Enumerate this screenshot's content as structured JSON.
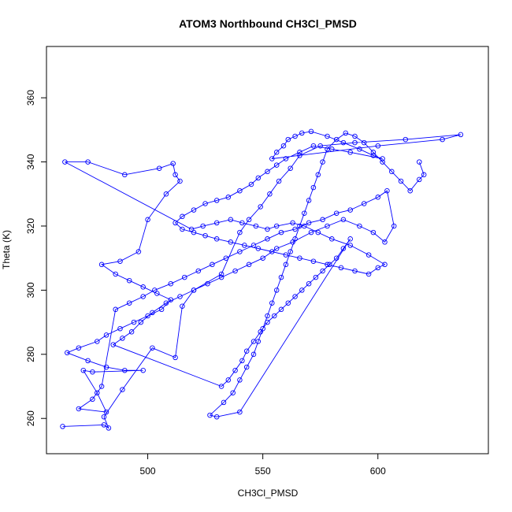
{
  "chart_data": {
    "type": "scatter",
    "title": "ATOM3 Northbound CH3Cl_PMSD",
    "xlabel": "CH3Cl_PMSD",
    "ylabel": "Theta (K)",
    "xlim": [
      456,
      648
    ],
    "ylim": [
      249,
      376
    ],
    "xticks": [
      500,
      550,
      600
    ],
    "yticks": [
      260,
      280,
      300,
      320,
      340,
      360
    ],
    "marker": "open-circle",
    "connected": true,
    "grid": false,
    "color": "#0000ff",
    "series": [
      {
        "points": [
          [
            463,
            257.5
          ],
          [
            481,
            258
          ],
          [
            483,
            257
          ],
          [
            481,
            260.5
          ],
          [
            489,
            269
          ],
          [
            502,
            282
          ],
          [
            512,
            279
          ],
          [
            515,
            295
          ],
          [
            520,
            300
          ],
          [
            532,
            305
          ],
          [
            540,
            318
          ],
          [
            544,
            322
          ],
          [
            549,
            326
          ],
          [
            553,
            330
          ],
          [
            557,
            334
          ],
          [
            562,
            338
          ],
          [
            566,
            342
          ],
          [
            575,
            345
          ],
          [
            590,
            346
          ],
          [
            612,
            347
          ],
          [
            636,
            348.5
          ],
          [
            628,
            347
          ],
          [
            600,
            345
          ],
          [
            554,
            341
          ],
          [
            556,
            343
          ],
          [
            559,
            345
          ],
          [
            561,
            347
          ],
          [
            564,
            348
          ],
          [
            567,
            349
          ],
          [
            571,
            349.5
          ],
          [
            578,
            348
          ],
          [
            585,
            346
          ],
          [
            592,
            344
          ],
          [
            598,
            342
          ],
          [
            602,
            341
          ],
          [
            588,
            343
          ],
          [
            580,
            344
          ],
          [
            572,
            345
          ],
          [
            566,
            343
          ],
          [
            560,
            341
          ],
          [
            556,
            339
          ],
          [
            552,
            337
          ],
          [
            548,
            335
          ],
          [
            545,
            333
          ],
          [
            540,
            331
          ],
          [
            535,
            329
          ],
          [
            530,
            328
          ],
          [
            525,
            327
          ],
          [
            520,
            325
          ],
          [
            515,
            323
          ],
          [
            512,
            321
          ],
          [
            515,
            319
          ],
          [
            520,
            318
          ],
          [
            525,
            317
          ],
          [
            530,
            316
          ],
          [
            536,
            315
          ],
          [
            542,
            314
          ],
          [
            548,
            313
          ],
          [
            554,
            312
          ],
          [
            560,
            311
          ],
          [
            566,
            310
          ],
          [
            572,
            309
          ],
          [
            578,
            308
          ],
          [
            584,
            307
          ],
          [
            590,
            306
          ],
          [
            596,
            305
          ],
          [
            600,
            307
          ],
          [
            603,
            308
          ],
          [
            596,
            311
          ],
          [
            588,
            314
          ],
          [
            580,
            316
          ],
          [
            574,
            318
          ],
          [
            568,
            320
          ],
          [
            563,
            321
          ],
          [
            556,
            320
          ],
          [
            552,
            319
          ],
          [
            547,
            320
          ],
          [
            541,
            321
          ],
          [
            536,
            322
          ],
          [
            530,
            321
          ],
          [
            524,
            320
          ],
          [
            519,
            319
          ],
          [
            464,
            340
          ],
          [
            474,
            340
          ],
          [
            490,
            336
          ],
          [
            505,
            338
          ],
          [
            511,
            339.5
          ],
          [
            512,
            336
          ],
          [
            514,
            334
          ],
          [
            508,
            330
          ],
          [
            500,
            322
          ],
          [
            496,
            312
          ],
          [
            488,
            309
          ],
          [
            480,
            308
          ],
          [
            486,
            305
          ],
          [
            492,
            303
          ],
          [
            498,
            301
          ],
          [
            504,
            299
          ],
          [
            510,
            297
          ],
          [
            506,
            294
          ],
          [
            500,
            292
          ],
          [
            494,
            290
          ],
          [
            488,
            288
          ],
          [
            482,
            286
          ],
          [
            478,
            284
          ],
          [
            470,
            282
          ],
          [
            465,
            280.5
          ],
          [
            474,
            278
          ],
          [
            482,
            276
          ],
          [
            490,
            275
          ],
          [
            498,
            275
          ],
          [
            476,
            274.5
          ],
          [
            472,
            275
          ],
          [
            478,
            268
          ],
          [
            482,
            262
          ],
          [
            470,
            263
          ],
          [
            476,
            266
          ],
          [
            480,
            270
          ],
          [
            486,
            294
          ],
          [
            492,
            296
          ],
          [
            498,
            298
          ],
          [
            503,
            300
          ],
          [
            510,
            302
          ],
          [
            516,
            304
          ],
          [
            522,
            306
          ],
          [
            528,
            308
          ],
          [
            534,
            310
          ],
          [
            540,
            312
          ],
          [
            546,
            314
          ],
          [
            552,
            316
          ],
          [
            558,
            318
          ],
          [
            564,
            319
          ],
          [
            570,
            321
          ],
          [
            576,
            322
          ],
          [
            582,
            324
          ],
          [
            588,
            325
          ],
          [
            594,
            327
          ],
          [
            600,
            329
          ],
          [
            604,
            331
          ],
          [
            607,
            320
          ],
          [
            603,
            315
          ],
          [
            598,
            318
          ],
          [
            592,
            320
          ],
          [
            585,
            322
          ],
          [
            578,
            320
          ],
          [
            571,
            318
          ],
          [
            563,
            315
          ],
          [
            556,
            313
          ],
          [
            550,
            310
          ],
          [
            544,
            308
          ],
          [
            538,
            306
          ],
          [
            532,
            304
          ],
          [
            526,
            302
          ],
          [
            520,
            300
          ],
          [
            514,
            298
          ],
          [
            508,
            296
          ],
          [
            502,
            293
          ],
          [
            497,
            290
          ],
          [
            493,
            287
          ],
          [
            489,
            285
          ],
          [
            485,
            283
          ],
          [
            532,
            270
          ],
          [
            535,
            272
          ],
          [
            538,
            275
          ],
          [
            541,
            278
          ],
          [
            543,
            281
          ],
          [
            546,
            284
          ],
          [
            549,
            287
          ],
          [
            552,
            290
          ],
          [
            555,
            292
          ],
          [
            558,
            294
          ],
          [
            561,
            296
          ],
          [
            564,
            298
          ],
          [
            567,
            300
          ],
          [
            570,
            302
          ],
          [
            573,
            304
          ],
          [
            576,
            306
          ],
          [
            579,
            308
          ],
          [
            582,
            310
          ],
          [
            585,
            313
          ],
          [
            588,
            316
          ],
          [
            540,
            262
          ],
          [
            530,
            260.5
          ],
          [
            527,
            261
          ],
          [
            533,
            265
          ],
          [
            537,
            268
          ],
          [
            540,
            272
          ],
          [
            543,
            276
          ],
          [
            546,
            280
          ],
          [
            548,
            284
          ],
          [
            550,
            288
          ],
          [
            552,
            292
          ],
          [
            554,
            296
          ],
          [
            556,
            300
          ],
          [
            558,
            304
          ],
          [
            560,
            308
          ],
          [
            562,
            312
          ],
          [
            564,
            316
          ],
          [
            566,
            320
          ],
          [
            568,
            324
          ],
          [
            570,
            328
          ],
          [
            572,
            332
          ],
          [
            574,
            336
          ],
          [
            576,
            340
          ],
          [
            578,
            344
          ],
          [
            582,
            347
          ],
          [
            586,
            349
          ],
          [
            590,
            348
          ],
          [
            594,
            346
          ],
          [
            598,
            343
          ],
          [
            602,
            340
          ],
          [
            606,
            337
          ],
          [
            610,
            334
          ],
          [
            614,
            331
          ],
          [
            618,
            334.5
          ],
          [
            620,
            336
          ],
          [
            618,
            340
          ]
        ]
      }
    ]
  }
}
